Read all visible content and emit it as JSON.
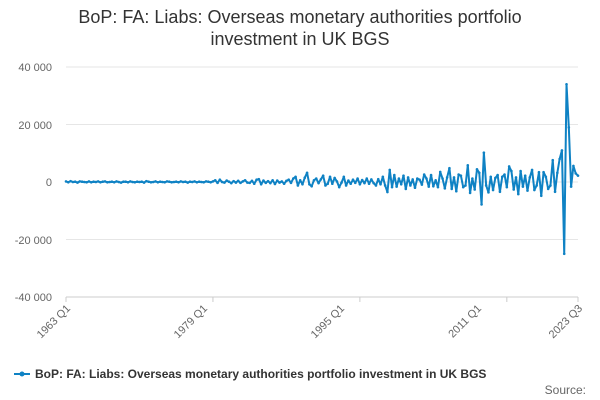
{
  "chart_data": {
    "type": "line",
    "title_line1": "BoP: FA: Liabs: Overseas monetary authorities portfolio",
    "title_line2": "investment in UK BGS",
    "series": [
      {
        "name": "BoP: FA: Liabs: Overseas monetary authorities portfolio investment in UK BGS",
        "color": "#0f82c4",
        "start_year": 1963,
        "start_quarter": 1,
        "values": [
          200,
          -100,
          300,
          0,
          100,
          -200,
          200,
          100,
          0,
          -100,
          200,
          -100,
          100,
          0,
          200,
          -100,
          100,
          200,
          -100,
          0,
          100,
          -100,
          200,
          0,
          -200,
          100,
          100,
          -100,
          200,
          0,
          -100,
          100,
          0,
          100,
          -200,
          300,
          100,
          -100,
          0,
          200,
          -100,
          100,
          0,
          -100,
          200,
          100,
          -100,
          0,
          100,
          -100,
          200,
          0,
          100,
          -200,
          100,
          0,
          200,
          -100,
          100,
          0,
          -100,
          200,
          100,
          -100,
          200,
          600,
          -300,
          800,
          0,
          -200,
          500,
          100,
          -400,
          300,
          -200,
          400,
          -300,
          200,
          600,
          -200,
          -300,
          400,
          -600,
          800,
          1000,
          -800,
          500,
          -300,
          300,
          -400,
          600,
          -700,
          500,
          -200,
          200,
          -600,
          400,
          800,
          -300,
          1200,
          1800,
          -1200,
          600,
          -800,
          1500,
          3200,
          -800,
          -1500,
          600,
          1200,
          -400,
          900,
          2200,
          -1200,
          -600,
          1800,
          -600,
          1400,
          200,
          -1800,
          -200,
          1800,
          -1200,
          500,
          -600,
          800,
          -300,
          1200,
          -800,
          700,
          -400,
          1200,
          -600,
          900,
          -400,
          -1200,
          1000,
          -800,
          1800,
          -1200,
          -3500,
          4200,
          -1800,
          2400,
          -1600,
          1200,
          -800,
          2200,
          -2400,
          1600,
          -1200,
          900,
          -2000,
          1200,
          800,
          -900,
          2600,
          1200,
          -1600,
          2400,
          -1500,
          600,
          -1800,
          3500,
          1200,
          -2200,
          1600,
          4800,
          -2400,
          1600,
          -3200,
          2600,
          2200,
          -1800,
          -1200,
          5800,
          -3800,
          1200,
          -2600,
          4400,
          3200,
          -7800,
          10200,
          -1200,
          -3600,
          1800,
          -2800,
          1400,
          2400,
          -3400,
          1800,
          2600,
          -1800,
          5400,
          3800,
          -2600,
          1600,
          -4200,
          3800,
          -1600,
          2200,
          -3000,
          1600,
          4200,
          -2800,
          -1200,
          3400,
          -4800,
          3400,
          1800,
          -2400,
          -1200,
          7600,
          -3400,
          3200,
          8000,
          11000,
          -25000,
          34000,
          19000,
          -1600,
          5600,
          3000,
          2200
        ]
      }
    ],
    "x_tick_labels": [
      "1963 Q1",
      "1979 Q1",
      "1995 Q1",
      "2011 Q1",
      "2023 Q3"
    ],
    "y_tick_labels": [
      "40 000",
      "20 000",
      "0",
      "-20 000",
      "-40 000"
    ],
    "ylim": [
      -40000,
      40000
    ],
    "y_ticks": [
      40000,
      20000,
      0,
      -20000,
      -40000
    ],
    "grid": true,
    "legend_position": "bottom",
    "source_label": "Source:"
  }
}
